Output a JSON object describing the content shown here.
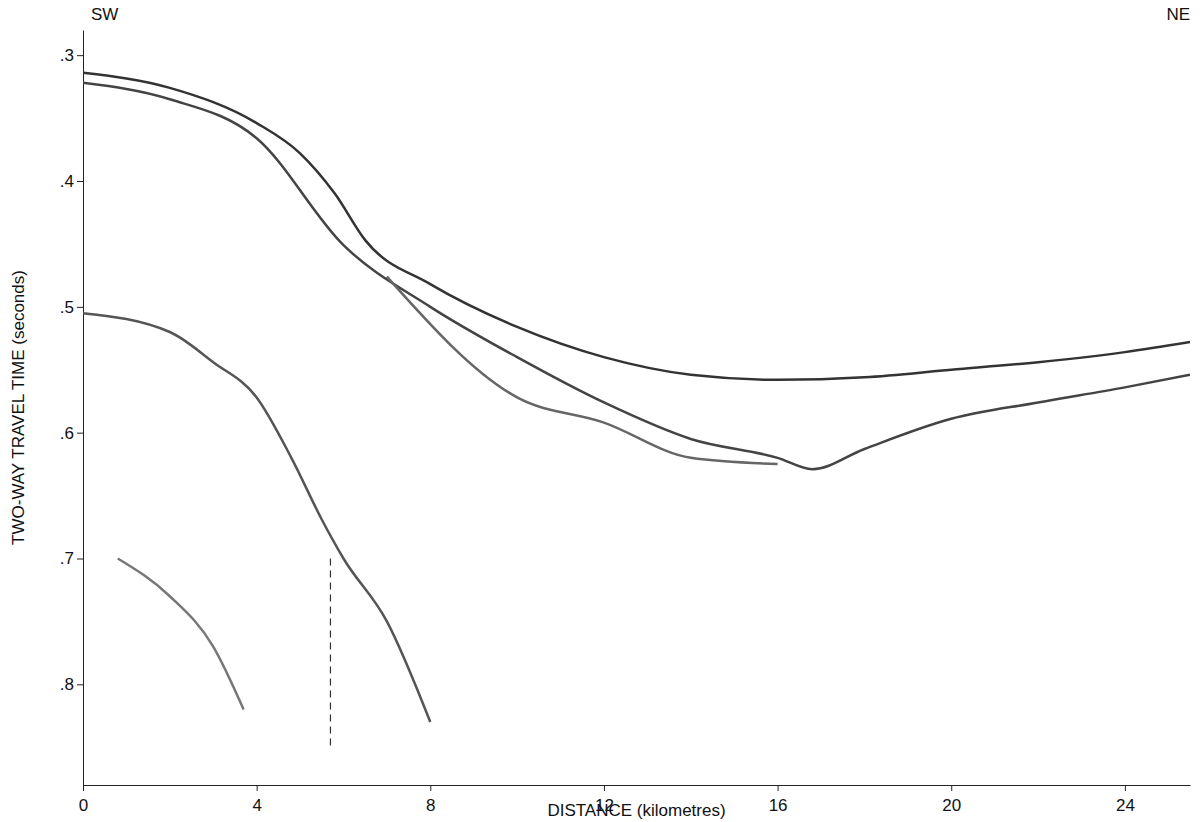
{
  "chart_data": {
    "type": "line",
    "annotations": [
      "SW",
      "NE"
    ],
    "x_label": "DISTANCE (kilometres)",
    "y_label": "TWO-WAY TRAVEL TIME (seconds)",
    "xlim": [
      0,
      25.5
    ],
    "xticks": [
      0,
      4,
      8,
      12,
      16,
      20,
      24
    ],
    "ylim": [
      0.28,
      0.88
    ],
    "yticks": [
      {
        "value": 0.3,
        "label": ".3"
      },
      {
        "value": 0.4,
        "label": ".4"
      },
      {
        "value": 0.5,
        "label": ".5"
      },
      {
        "value": 0.6,
        "label": ".6"
      },
      {
        "value": 0.7,
        "label": ".7"
      },
      {
        "value": 0.8,
        "label": ".8"
      }
    ],
    "grid": false,
    "series": [
      {
        "color": "#333333",
        "line_style": "solid",
        "x": [
          0,
          2,
          4,
          5,
          5.8,
          6.5,
          8,
          10,
          12,
          14,
          16,
          18,
          20,
          22,
          24,
          25.5
        ],
        "values": [
          0.314,
          0.326,
          0.354,
          0.378,
          0.41,
          0.447,
          0.482,
          0.516,
          0.54,
          0.554,
          0.558,
          0.556,
          0.55,
          0.544,
          0.536,
          0.528
        ]
      },
      {
        "color": "#444444",
        "line_style": "solid",
        "x": [
          0,
          2,
          4,
          6,
          8,
          10,
          12,
          14,
          16,
          16.8,
          18,
          20,
          22,
          24,
          25.5
        ],
        "values": [
          0.322,
          0.335,
          0.366,
          0.451,
          0.5,
          0.54,
          0.576,
          0.605,
          0.62,
          0.629,
          0.613,
          0.589,
          0.576,
          0.564,
          0.554
        ]
      },
      {
        "color": "#666666",
        "line_style": "solid",
        "x": [
          7,
          10,
          12,
          14,
          16
        ],
        "values": [
          0.476,
          0.572,
          0.592,
          0.62,
          0.625
        ]
      },
      {
        "color": "#555555",
        "line_style": "solid",
        "x": [
          0,
          2,
          3,
          4,
          4.8,
          5.5,
          6,
          7,
          8
        ],
        "values": [
          0.505,
          0.52,
          0.544,
          0.572,
          0.62,
          0.669,
          0.7,
          0.75,
          0.83
        ]
      },
      {
        "color": "#777777",
        "line_style": "solid",
        "x": [
          0.8,
          2,
          3,
          3.7
        ],
        "values": [
          0.7,
          0.73,
          0.77,
          0.82
        ]
      },
      {
        "color": "#333333",
        "line_style": "dashed",
        "x": [
          5.7,
          5.7
        ],
        "values": [
          0.7,
          0.85
        ]
      }
    ]
  }
}
